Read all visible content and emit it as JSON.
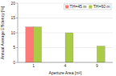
{
  "chart_data": {
    "type": "bar",
    "xlabel": "Aperture Area [m²]",
    "ylabel": "Annual Average Efficiency [%]",
    "categories": [
      "1",
      "4",
      "9"
    ],
    "series": [
      {
        "name": "TH=45 m",
        "color": "#ff7777",
        "values": [
          12.0,
          0,
          0
        ]
      },
      {
        "name": "TH=60 m",
        "color": "#aacc44",
        "values": [
          12.0,
          10.0,
          5.5
        ]
      }
    ],
    "ylim": [
      0,
      20
    ],
    "yticks": [
      0,
      5,
      10,
      15,
      20
    ],
    "grid": true,
    "legend": "upper right"
  }
}
